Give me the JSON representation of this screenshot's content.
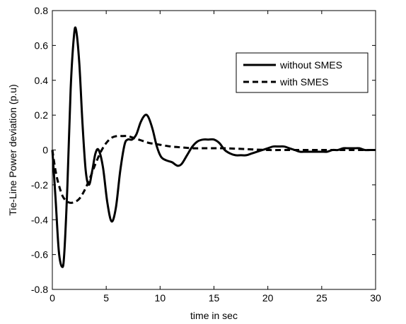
{
  "chart_data": {
    "type": "line",
    "title": "",
    "xlabel": "time in sec",
    "ylabel": "Tie-Line Power deviation (p.u)",
    "xlim": [
      0,
      30
    ],
    "ylim": [
      -0.8,
      0.8
    ],
    "xticks": [
      "0",
      "5",
      "10",
      "15",
      "20",
      "25",
      "30"
    ],
    "yticks": [
      "0.8",
      "0.6",
      "0.4",
      "0.2",
      "0",
      "-0.2",
      "-0.4",
      "-0.6",
      "-0.8"
    ],
    "grid": false,
    "legend_position": "top-right",
    "series": [
      {
        "name": "without SMES",
        "style": "solid",
        "color": "#000000",
        "x": [
          0,
          0.3,
          0.6,
          0.9,
          1.1,
          1.4,
          1.7,
          2.0,
          2.2,
          2.5,
          2.8,
          3.1,
          3.4,
          3.7,
          4.0,
          4.3,
          4.7,
          5.1,
          5.5,
          5.9,
          6.3,
          6.7,
          7.0,
          7.4,
          7.8,
          8.2,
          8.6,
          8.9,
          9.3,
          9.7,
          10.1,
          10.6,
          11.1,
          11.6,
          12.0,
          12.5,
          13.0,
          13.5,
          14.0,
          14.5,
          15.0,
          15.5,
          16.0,
          16.5,
          17.0,
          17.5,
          18.0,
          18.5,
          19.0,
          19.5,
          20.0,
          20.5,
          21.0,
          21.5,
          22.0,
          22.5,
          23.0,
          23.5,
          24.0,
          24.5,
          25.0,
          25.5,
          26.0,
          26.5,
          27.0,
          27.5,
          28.0,
          28.5,
          29.0,
          29.5,
          30.0
        ],
        "y": [
          0,
          -0.28,
          -0.58,
          -0.67,
          -0.6,
          -0.2,
          0.35,
          0.65,
          0.69,
          0.5,
          0.15,
          -0.12,
          -0.2,
          -0.12,
          -0.02,
          0.0,
          -0.1,
          -0.3,
          -0.41,
          -0.33,
          -0.12,
          0.03,
          0.06,
          0.06,
          0.09,
          0.16,
          0.2,
          0.19,
          0.12,
          0.02,
          -0.04,
          -0.06,
          -0.07,
          -0.09,
          -0.08,
          -0.03,
          0.02,
          0.05,
          0.06,
          0.06,
          0.06,
          0.04,
          0.0,
          -0.02,
          -0.03,
          -0.03,
          -0.03,
          -0.02,
          -0.01,
          0.0,
          0.01,
          0.02,
          0.02,
          0.02,
          0.01,
          0.0,
          -0.01,
          -0.01,
          -0.01,
          -0.01,
          -0.01,
          -0.01,
          0.0,
          0.0,
          0.01,
          0.01,
          0.01,
          0.01,
          0.0,
          0.0,
          0.0
        ]
      },
      {
        "name": "with SMES",
        "style": "dashed",
        "color": "#000000",
        "x": [
          0,
          0.3,
          0.6,
          1.0,
          1.5,
          2.0,
          2.5,
          3.0,
          3.5,
          4.0,
          4.5,
          5.0,
          5.5,
          6.0,
          6.5,
          7.0,
          7.5,
          8.0,
          8.5,
          9.0,
          9.5,
          10.0,
          11.0,
          12.0,
          13.0,
          14.0,
          15.0,
          16.0,
          18.0,
          20.0,
          22.0,
          25.0,
          28.0,
          30.0
        ],
        "y": [
          0,
          -0.12,
          -0.2,
          -0.27,
          -0.3,
          -0.3,
          -0.28,
          -0.23,
          -0.16,
          -0.08,
          -0.01,
          0.04,
          0.07,
          0.08,
          0.08,
          0.08,
          0.07,
          0.06,
          0.05,
          0.04,
          0.035,
          0.03,
          0.02,
          0.015,
          0.01,
          0.01,
          0.01,
          0.01,
          0.005,
          0.0,
          0.0,
          0.0,
          0.0,
          0.0
        ]
      }
    ]
  }
}
